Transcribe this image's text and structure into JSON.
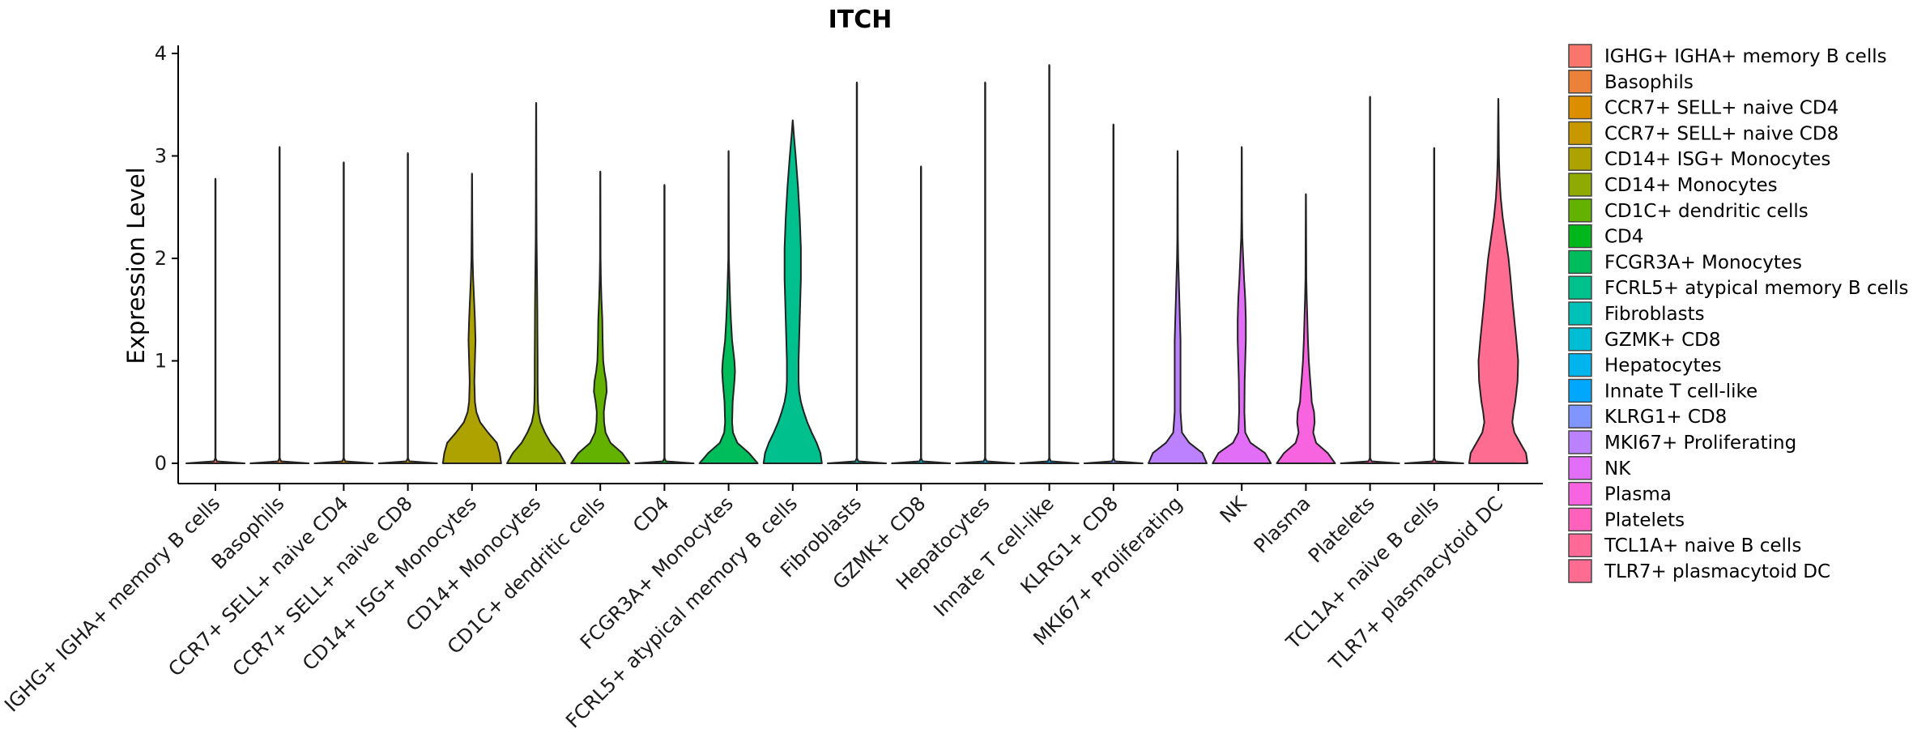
{
  "chart_data": {
    "type": "violin",
    "title": "ITCH",
    "xlabel": "",
    "ylabel": "Expression Level",
    "ylim": [
      -0.2,
      4.1
    ],
    "yticks": [
      0,
      1,
      2,
      3,
      4
    ],
    "legend_position": "right",
    "categories": [
      {
        "name": "IGHG+ IGHA+ memory B cells",
        "legend_label": " IGHG+ IGHA+ memory B cells",
        "color": "#F8766D",
        "max": 2.77,
        "density": []
      },
      {
        "name": "Basophils",
        "legend_label": "Basophils",
        "color": "#EC8239",
        "max": 3.08,
        "density": []
      },
      {
        "name": "CCR7+ SELL+ naive CD4",
        "legend_label": "CCR7+ SELL+ naive CD4",
        "color": "#DB8E00",
        "max": 2.93,
        "density": []
      },
      {
        "name": "CCR7+ SELL+ naive CD8",
        "legend_label": "CCR7+ SELL+ naive CD8",
        "color": "#C79800",
        "max": 3.02,
        "density": []
      },
      {
        "name": "CD14+ ISG+ Monocytes",
        "legend_label": "CD14+ ISG+ Monocytes",
        "color": "#AEA200",
        "max": 2.82,
        "density": [
          [
            0,
            1.0
          ],
          [
            0.1,
            0.95
          ],
          [
            0.2,
            0.85
          ],
          [
            0.3,
            0.55
          ],
          [
            0.4,
            0.28
          ],
          [
            0.5,
            0.15
          ],
          [
            0.6,
            0.1
          ],
          [
            0.8,
            0.08
          ],
          [
            1.0,
            0.1
          ],
          [
            1.2,
            0.12
          ],
          [
            1.4,
            0.1
          ],
          [
            1.6,
            0.07
          ],
          [
            1.8,
            0.04
          ],
          [
            2.0,
            0.02
          ],
          [
            2.4,
            0.01
          ]
        ]
      },
      {
        "name": "CD14+ Monocytes",
        "legend_label": "CD14+ Monocytes",
        "color": "#8FAA00",
        "max": 3.51,
        "density": [
          [
            0,
            1.0
          ],
          [
            0.1,
            0.8
          ],
          [
            0.2,
            0.5
          ],
          [
            0.3,
            0.3
          ],
          [
            0.4,
            0.15
          ],
          [
            0.5,
            0.08
          ],
          [
            0.6,
            0.06
          ],
          [
            0.8,
            0.05
          ],
          [
            1.0,
            0.05
          ],
          [
            1.2,
            0.045
          ],
          [
            1.5,
            0.04
          ],
          [
            1.8,
            0.03
          ],
          [
            2.2,
            0.015
          ],
          [
            2.6,
            0.01
          ]
        ]
      },
      {
        "name": "CD1C+ dendritic cells",
        "legend_label": "CD1C+ dendritic cells",
        "color": "#64B200",
        "max": 2.84,
        "density": [
          [
            0,
            1.0
          ],
          [
            0.1,
            0.75
          ],
          [
            0.2,
            0.35
          ],
          [
            0.3,
            0.18
          ],
          [
            0.4,
            0.13
          ],
          [
            0.5,
            0.12
          ],
          [
            0.6,
            0.16
          ],
          [
            0.7,
            0.22
          ],
          [
            0.8,
            0.2
          ],
          [
            0.9,
            0.14
          ],
          [
            1.0,
            0.1
          ],
          [
            1.2,
            0.08
          ],
          [
            1.4,
            0.07
          ],
          [
            1.6,
            0.04
          ],
          [
            1.8,
            0.02
          ],
          [
            2.0,
            0.01
          ]
        ]
      },
      {
        "name": "CD4",
        "legend_label": "CD4",
        "color": "#00B81B",
        "max": 2.71,
        "density": []
      },
      {
        "name": "FCGR3A+ Monocytes",
        "legend_label": "FCGR3A+ Monocytes",
        "color": "#00BD5C",
        "max": 3.04,
        "density": [
          [
            0,
            1.0
          ],
          [
            0.1,
            0.7
          ],
          [
            0.2,
            0.3
          ],
          [
            0.3,
            0.15
          ],
          [
            0.4,
            0.12
          ],
          [
            0.6,
            0.14
          ],
          [
            0.8,
            0.2
          ],
          [
            0.9,
            0.22
          ],
          [
            1.0,
            0.2
          ],
          [
            1.2,
            0.12
          ],
          [
            1.4,
            0.08
          ],
          [
            1.6,
            0.05
          ],
          [
            1.8,
            0.03
          ],
          [
            2.0,
            0.01
          ]
        ]
      },
      {
        "name": "FCRL5+ atypical memory B cells",
        "legend_label": "FCRL5+ atypical memory B cells",
        "color": "#00C08E",
        "max": 3.34,
        "density": [
          [
            0,
            1.0
          ],
          [
            0.1,
            0.95
          ],
          [
            0.2,
            0.82
          ],
          [
            0.3,
            0.65
          ],
          [
            0.4,
            0.5
          ],
          [
            0.5,
            0.38
          ],
          [
            0.6,
            0.28
          ],
          [
            0.7,
            0.22
          ],
          [
            0.8,
            0.2
          ],
          [
            1.0,
            0.2
          ],
          [
            1.2,
            0.22
          ],
          [
            1.5,
            0.25
          ],
          [
            1.8,
            0.28
          ],
          [
            2.1,
            0.28
          ],
          [
            2.4,
            0.24
          ],
          [
            2.7,
            0.18
          ],
          [
            3.0,
            0.1
          ],
          [
            3.2,
            0.04
          ]
        ]
      },
      {
        "name": "Fibroblasts",
        "legend_label": "Fibroblasts",
        "color": "#00C1B7",
        "max": 3.71,
        "density": []
      },
      {
        "name": "GZMK+ CD8",
        "legend_label": "GZMK+ CD8",
        "color": "#00BDD4",
        "max": 2.89,
        "density": []
      },
      {
        "name": "Hepatocytes",
        "legend_label": "Hepatocytes",
        "color": "#00B5EE",
        "max": 3.71,
        "density": []
      },
      {
        "name": "Innate T cell-like",
        "legend_label": "Innate T cell-like",
        "color": "#00A7FF",
        "max": 3.88,
        "density": []
      },
      {
        "name": "KLRG1+ CD8",
        "legend_label": "KLRG1+ CD8",
        "color": "#7F96FF",
        "max": 3.3,
        "density": []
      },
      {
        "name": "MKI67+ Proliferating",
        "legend_label": "MKI67+ Proliferating",
        "color": "#BC81FF",
        "max": 3.04,
        "density": [
          [
            0,
            1.0
          ],
          [
            0.1,
            0.85
          ],
          [
            0.2,
            0.4
          ],
          [
            0.3,
            0.15
          ],
          [
            0.5,
            0.1
          ],
          [
            0.8,
            0.1
          ],
          [
            1.0,
            0.1
          ],
          [
            1.2,
            0.1
          ],
          [
            1.4,
            0.08
          ],
          [
            1.6,
            0.06
          ],
          [
            1.8,
            0.04
          ],
          [
            2.0,
            0.02
          ],
          [
            2.2,
            0.01
          ]
        ]
      },
      {
        "name": "NK",
        "legend_label": "NK",
        "color": "#E26EF7",
        "max": 3.08,
        "density": [
          [
            0,
            1.0
          ],
          [
            0.1,
            0.8
          ],
          [
            0.2,
            0.3
          ],
          [
            0.3,
            0.12
          ],
          [
            0.5,
            0.09
          ],
          [
            0.8,
            0.1
          ],
          [
            1.0,
            0.12
          ],
          [
            1.2,
            0.14
          ],
          [
            1.4,
            0.14
          ],
          [
            1.6,
            0.12
          ],
          [
            1.8,
            0.08
          ],
          [
            2.0,
            0.05
          ],
          [
            2.2,
            0.02
          ],
          [
            2.4,
            0.01
          ]
        ]
      },
      {
        "name": "Plasma",
        "legend_label": "Plasma",
        "color": "#F863DF",
        "max": 2.62,
        "density": [
          [
            0,
            1.0
          ],
          [
            0.1,
            0.75
          ],
          [
            0.2,
            0.35
          ],
          [
            0.3,
            0.25
          ],
          [
            0.4,
            0.3
          ],
          [
            0.5,
            0.28
          ],
          [
            0.6,
            0.2
          ],
          [
            0.7,
            0.18
          ],
          [
            0.8,
            0.15
          ],
          [
            1.0,
            0.1
          ],
          [
            1.2,
            0.07
          ],
          [
            1.4,
            0.05
          ],
          [
            1.6,
            0.03
          ],
          [
            1.8,
            0.015
          ]
        ]
      },
      {
        "name": "Platelets",
        "legend_label": "Platelets",
        "color": "#FF62BC",
        "max": 3.57,
        "density": []
      },
      {
        "name": "TCL1A+ naive B cells",
        "legend_label": "TCL1A+ naive B cells",
        "color": "#FF6A98",
        "max": 3.07,
        "density": []
      },
      {
        "name": "TLR7+ plasmacytoid DC",
        "legend_label": "TLR7+ plasmacytoid DC",
        "color": "#FF6C91",
        "max": 3.55,
        "density": [
          [
            0,
            1.0
          ],
          [
            0.1,
            0.95
          ],
          [
            0.2,
            0.75
          ],
          [
            0.3,
            0.55
          ],
          [
            0.4,
            0.48
          ],
          [
            0.5,
            0.52
          ],
          [
            0.6,
            0.58
          ],
          [
            0.8,
            0.66
          ],
          [
            1.0,
            0.68
          ],
          [
            1.2,
            0.62
          ],
          [
            1.4,
            0.55
          ],
          [
            1.6,
            0.48
          ],
          [
            1.8,
            0.42
          ],
          [
            2.0,
            0.35
          ],
          [
            2.2,
            0.25
          ],
          [
            2.4,
            0.15
          ],
          [
            2.6,
            0.08
          ],
          [
            2.8,
            0.04
          ],
          [
            3.0,
            0.02
          ]
        ]
      }
    ]
  }
}
